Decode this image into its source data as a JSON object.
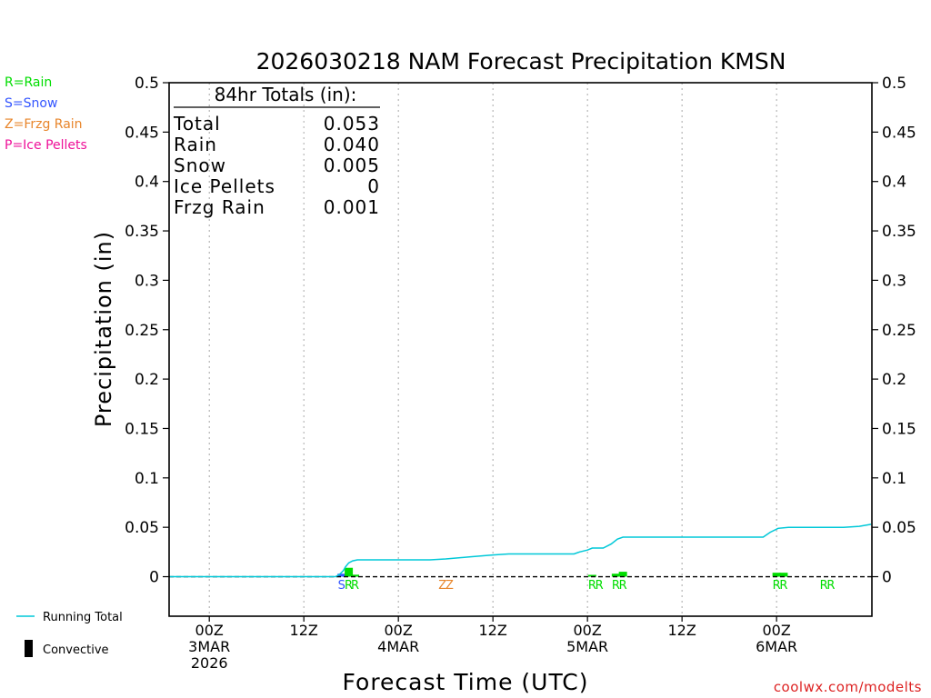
{
  "chart_data": {
    "type": "bar",
    "title": "2026030218 NAM Forecast Precipitation KMSN",
    "xlabel": "Forecast Time (UTC)",
    "ylabel": "Precipitation (in)",
    "ylim": [
      -0.04,
      0.5
    ],
    "y_ticks": [
      0,
      0.05,
      0.1,
      0.15,
      0.2,
      0.25,
      0.3,
      0.35,
      0.4,
      0.45,
      0.5
    ],
    "y_tick_labels": [
      "0",
      "0.05",
      "0.1",
      "0.15",
      "0.2",
      "0.25",
      "0.3",
      "0.35",
      "0.4",
      "0.45",
      "0.5"
    ],
    "x_unit": "forecast hour",
    "xlim": [
      -5.1,
      84.1
    ],
    "x_ticks": [
      {
        "hour": 0,
        "lines": [
          "00Z",
          "3MAR",
          "2026"
        ]
      },
      {
        "hour": 12,
        "lines": [
          "12Z"
        ]
      },
      {
        "hour": 24,
        "lines": [
          "00Z",
          "4MAR"
        ]
      },
      {
        "hour": 36,
        "lines": [
          "12Z"
        ]
      },
      {
        "hour": 48,
        "lines": [
          "00Z",
          "5MAR"
        ]
      },
      {
        "hour": 60,
        "lines": [
          "12Z"
        ]
      },
      {
        "hour": 72,
        "lines": [
          "00Z",
          "6MAR"
        ]
      }
    ],
    "bars": [
      {
        "hour": 16.8,
        "value": 0.003,
        "type": "snow"
      },
      {
        "hour": 17.7,
        "value": 0.009,
        "type": "rain"
      },
      {
        "hour": 18.5,
        "value": 0.002,
        "type": "rain"
      },
      {
        "hour": 48.6,
        "value": 0.001,
        "type": "rain"
      },
      {
        "hour": 51.6,
        "value": 0.003,
        "type": "rain"
      },
      {
        "hour": 52.5,
        "value": 0.005,
        "type": "rain"
      },
      {
        "hour": 72.0,
        "value": 0.004,
        "type": "rain"
      },
      {
        "hour": 72.9,
        "value": 0.004,
        "type": "rain"
      }
    ],
    "precip_type_markers": [
      {
        "hour": 16.8,
        "text": "S",
        "type": "snow"
      },
      {
        "hour": 17.7,
        "text": "R",
        "type": "rain"
      },
      {
        "hour": 18.5,
        "text": "R",
        "type": "rain"
      },
      {
        "hour": 29.6,
        "text": "Z",
        "type": "frzg"
      },
      {
        "hour": 30.5,
        "text": "Z",
        "type": "frzg"
      },
      {
        "hour": 48.6,
        "text": "R",
        "type": "rain"
      },
      {
        "hour": 49.5,
        "text": "R",
        "type": "rain"
      },
      {
        "hour": 51.6,
        "text": "R",
        "type": "rain"
      },
      {
        "hour": 52.5,
        "text": "R",
        "type": "rain"
      },
      {
        "hour": 72.0,
        "text": "R",
        "type": "rain"
      },
      {
        "hour": 72.9,
        "text": "R",
        "type": "rain"
      },
      {
        "hour": 78.0,
        "text": "R",
        "type": "rain"
      },
      {
        "hour": 78.9,
        "text": "R",
        "type": "rain"
      }
    ],
    "running_total": {
      "name": "Running Total",
      "points": [
        [
          -5,
          0
        ],
        [
          16,
          0
        ],
        [
          16.5,
          0.002
        ],
        [
          17,
          0.006
        ],
        [
          17.3,
          0.01
        ],
        [
          17.7,
          0.014
        ],
        [
          18.2,
          0.016
        ],
        [
          18.8,
          0.017
        ],
        [
          20,
          0.017
        ],
        [
          23,
          0.017
        ],
        [
          26,
          0.017
        ],
        [
          28,
          0.017
        ],
        [
          30,
          0.018
        ],
        [
          33,
          0.02
        ],
        [
          36,
          0.022
        ],
        [
          38,
          0.023
        ],
        [
          41,
          0.023
        ],
        [
          44,
          0.023
        ],
        [
          46.3,
          0.023
        ],
        [
          47,
          0.025
        ],
        [
          48,
          0.027
        ],
        [
          48.6,
          0.029
        ],
        [
          50,
          0.029
        ],
        [
          51,
          0.033
        ],
        [
          51.8,
          0.038
        ],
        [
          52.5,
          0.04
        ],
        [
          55,
          0.04
        ],
        [
          60,
          0.04
        ],
        [
          65,
          0.04
        ],
        [
          69,
          0.04
        ],
        [
          70.3,
          0.04
        ],
        [
          71.2,
          0.045
        ],
        [
          72.2,
          0.049
        ],
        [
          73.5,
          0.05
        ],
        [
          76,
          0.05
        ],
        [
          78,
          0.05
        ],
        [
          80.5,
          0.05
        ],
        [
          82.5,
          0.051
        ],
        [
          84,
          0.053
        ]
      ]
    },
    "totals_box": {
      "heading": "84hr Totals (in):",
      "rows": [
        {
          "label": "Total",
          "value": "0.053"
        },
        {
          "label": "Rain",
          "value": "0.040"
        },
        {
          "label": "Snow",
          "value": "0.005"
        },
        {
          "label": "Ice Pellets",
          "value": "0"
        },
        {
          "label": "Frzg Rain",
          "value": "0.001"
        }
      ]
    },
    "legend_top_left": [
      {
        "text": "R=Rain",
        "type": "rain"
      },
      {
        "text": "S=Snow",
        "type": "snow"
      },
      {
        "text": "Z=Frzg Rain",
        "type": "frzg"
      },
      {
        "text": "P=Ice Pellets",
        "type": "pellets"
      }
    ],
    "legend_bottom": {
      "running_total_label": "Running Total",
      "convective_label": "Convective"
    },
    "footer": "coolwx.com/modelts",
    "colors": {
      "rain": "#00dd00",
      "snow": "#3355ff",
      "frzg": "#e8852a",
      "pellets": "#ee1199",
      "running_total": "#00c8d8",
      "convective": "#000000",
      "footer": "#dd2222",
      "grid": "#a8a8a8"
    }
  }
}
